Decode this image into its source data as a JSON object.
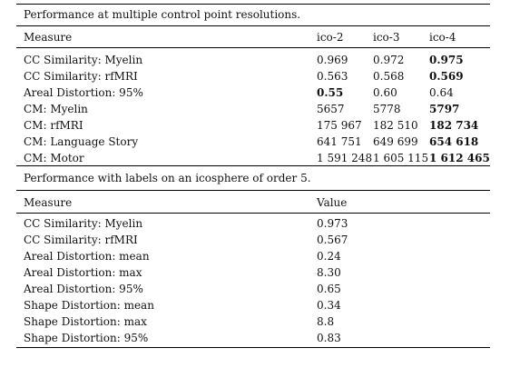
{
  "table1": {
    "caption": "Performance at multiple control point resolutions.",
    "header": [
      "Measure",
      "ico-2",
      "ico-3",
      "ico-4"
    ],
    "rows": [
      [
        "CC Similarity: Myelin",
        "0.969",
        "0.972",
        "0.975"
      ],
      [
        "CC Similarity: rfMRI",
        "0.563",
        "0.568",
        "0.569"
      ],
      [
        "Areal Distortion: 95%",
        "0.55",
        "0.60",
        "0.64"
      ],
      [
        "CM: Myelin",
        "5657",
        "5778",
        "5797"
      ],
      [
        "CM: rfMRI",
        "175 967",
        "182 510",
        "182 734"
      ],
      [
        "CM: Language Story",
        "641 751",
        "649 699",
        "654 618"
      ],
      [
        "CM: Motor",
        "1 591 248",
        "1 605 115",
        "1 612 465"
      ]
    ]
  },
  "table2": {
    "caption": "Performance with labels on an icosphere of order 5.",
    "header": [
      "Measure",
      "Value"
    ],
    "rows": [
      [
        "CC Similarity: Myelin",
        "0.973"
      ],
      [
        "CC Similarity: rfMRI",
        "0.567"
      ],
      [
        "Areal Distortion: mean",
        "0.24"
      ],
      [
        "Areal Distortion: max",
        "8.30"
      ],
      [
        "Areal Distortion: 95%",
        "0.65"
      ],
      [
        "Shape Distortion: mean",
        "0.34"
      ],
      [
        "Shape Distortion: max",
        "8.8"
      ],
      [
        "Shape Distortion: 95%",
        "0.83"
      ]
    ]
  }
}
